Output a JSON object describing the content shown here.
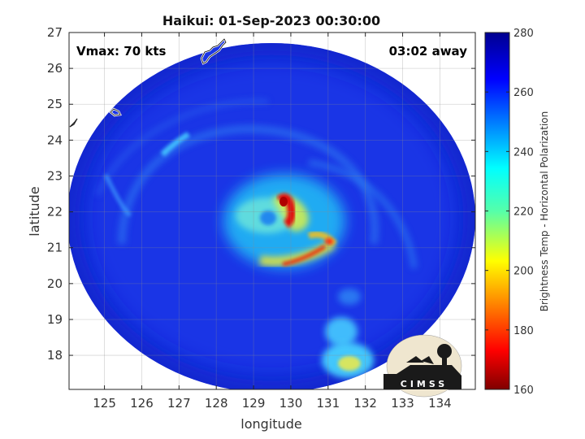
{
  "figure": {
    "title": "Haikui: 01-Sep-2023 00:30:00",
    "vmax_label": "Vmax: 70 kts",
    "time_away": "03:02 away",
    "xlabel": "longitude",
    "ylabel": "latitude",
    "colorbar_label": "Brightness Temp - Horizontal Polarization",
    "logo_text": "CIMSS"
  },
  "chart_data": {
    "type": "heatmap",
    "title": "Haikui: 01-Sep-2023 00:30:00",
    "xlabel": "longitude",
    "ylabel": "latitude",
    "xlim": [
      124.05,
      134.95
    ],
    "ylim": [
      17.05,
      27.0
    ],
    "xticks": [
      125,
      126,
      127,
      128,
      129,
      130,
      131,
      132,
      133,
      134
    ],
    "yticks": [
      18,
      19,
      20,
      21,
      22,
      23,
      24,
      25,
      26,
      27
    ],
    "grid": true,
    "colorbar": {
      "label": "Brightness Temp - Horizontal Polarization",
      "range": [
        160,
        280
      ],
      "ticks": [
        160,
        180,
        200,
        220,
        240,
        260,
        280
      ],
      "colormap": "jet",
      "colors": [
        "#800000",
        "#ff0000",
        "#ffff00",
        "#00ffff",
        "#0000ff",
        "#00008f"
      ]
    },
    "scan_center": {
      "lon": 129.5,
      "lat": 21.6
    },
    "scan_radius_deg": 5.5,
    "background_tb": 258,
    "features": [
      {
        "name": "eyewall-north",
        "lon": 129.75,
        "lat": 22.1,
        "tb": 178
      },
      {
        "name": "eyewall-east",
        "lon": 130.9,
        "lat": 21.15,
        "tb": 190
      },
      {
        "name": "inner-rainband",
        "lon": 130.3,
        "lat": 20.8,
        "tb": 200
      },
      {
        "name": "core-ring",
        "lon": 129.8,
        "lat": 21.7,
        "tb": 222
      },
      {
        "name": "southern-band",
        "lon": 131.3,
        "lat": 17.8,
        "tb": 225
      },
      {
        "name": "southern-band-core",
        "lon": 131.5,
        "lat": 17.7,
        "tb": 205
      },
      {
        "name": "northwest-band",
        "lon": 127.0,
        "lat": 24.2,
        "tb": 240
      }
    ],
    "land_outlines": [
      {
        "name": "okinawa-islands",
        "lon": 128.0,
        "lat": 26.5
      },
      {
        "name": "small-island",
        "lon": 125.3,
        "lat": 24.8
      },
      {
        "name": "edge-island",
        "lon": 124.2,
        "lat": 24.3
      }
    ]
  }
}
